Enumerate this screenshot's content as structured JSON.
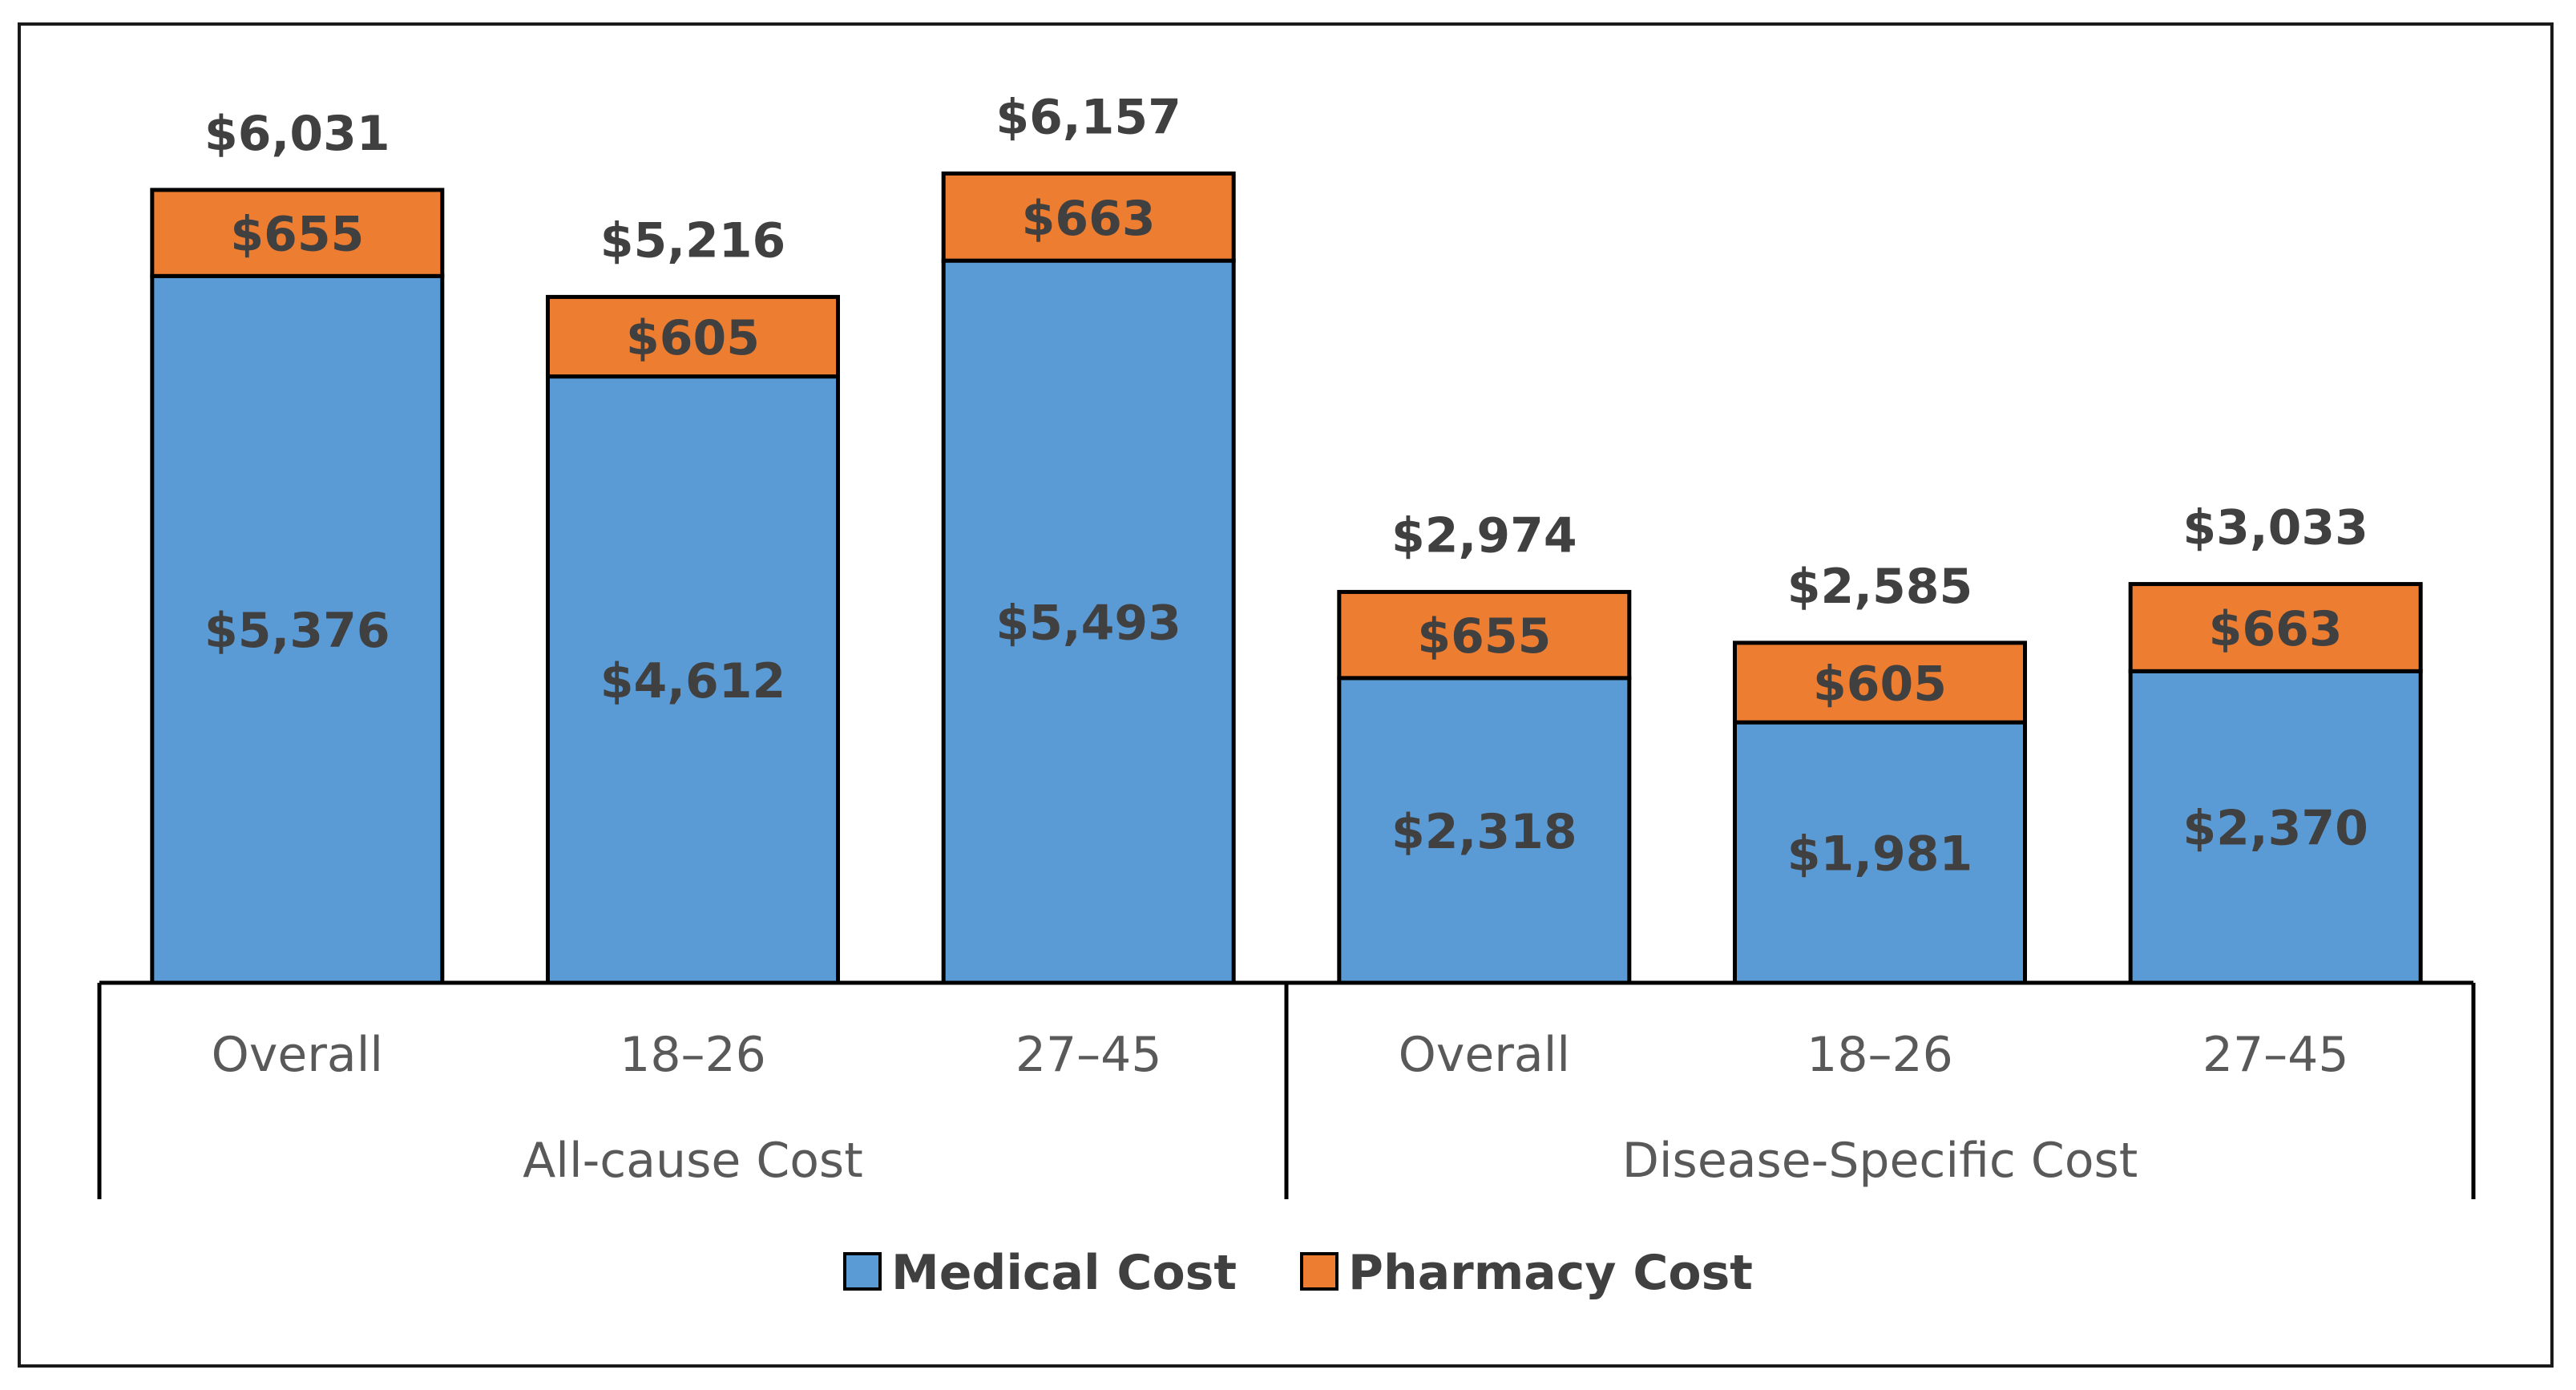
{
  "chart_data": {
    "type": "bar",
    "stacked": true,
    "title": "",
    "xlabel": "",
    "ylabel": "",
    "ylim": [
      0,
      6500
    ],
    "groups": [
      {
        "label": "All-cause Cost",
        "categories": [
          "Overall",
          "18–26",
          "27–45"
        ]
      },
      {
        "label": "Disease-Specific Cost",
        "categories": [
          "Overall",
          "18–26",
          "27–45"
        ]
      }
    ],
    "series": [
      {
        "name": "Medical Cost",
        "color": "#5b9bd5",
        "values": [
          5376,
          4612,
          5493,
          2318,
          1981,
          2370
        ],
        "labels": [
          "$5,376",
          "$4,612",
          "$5,493",
          "$2,318",
          "$1,981",
          "$2,370"
        ]
      },
      {
        "name": "Pharmacy Cost",
        "color": "#ed7d31",
        "values": [
          655,
          605,
          663,
          655,
          605,
          663
        ],
        "labels": [
          "$655",
          "$605",
          "$663",
          "$655",
          "$605",
          "$663"
        ]
      }
    ],
    "totals": [
      6031,
      5216,
      6157,
      2974,
      2585,
      3033
    ],
    "total_labels": [
      "$6,031",
      "$5,216",
      "$6,157",
      "$2,974",
      "$2,585",
      "$3,033"
    ],
    "legend": {
      "position": "bottom",
      "entries": [
        "Medical Cost",
        "Pharmacy Cost"
      ]
    },
    "grid": false
  }
}
